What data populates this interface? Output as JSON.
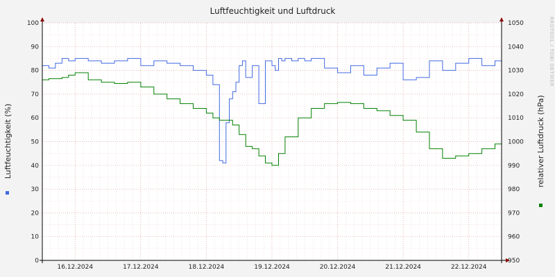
{
  "chart_data": {
    "type": "line",
    "title": "Luftfeuchtigkeit und Luftdruck",
    "watermark": "RRDTOOL / TOBI OETIKER",
    "x_tick_labels": [
      "16.12.2024",
      "17.12.2024",
      "18.12.2024",
      "19.12.2024",
      "20.12.2024",
      "21.12.2024",
      "22.12.2024"
    ],
    "x_range_days": [
      15.5,
      22.5
    ],
    "left_axis": {
      "label": "Luftfeuchtigkeit (%)",
      "min": 0,
      "max": 100,
      "ticks": [
        0,
        10,
        20,
        30,
        40,
        50,
        60,
        70,
        80,
        90,
        100
      ]
    },
    "right_axis": {
      "label": "relativer Luftdruck (hPa)",
      "min": 950,
      "max": 1050,
      "ticks": [
        950,
        960,
        970,
        980,
        990,
        1000,
        1010,
        1020,
        1030,
        1040,
        1050
      ]
    },
    "grid": true,
    "colors": {
      "humidity": "#4169e1",
      "pressure": "#008000",
      "grid": "#e0a0a0",
      "axis": "#000000",
      "plot_bg": "#ffffff",
      "page_bg": "#f3f3f3"
    },
    "series": [
      {
        "axis": "left",
        "x": [
          15.5,
          15.6,
          15.7,
          15.8,
          15.9,
          16.0,
          16.2,
          16.4,
          16.6,
          16.8,
          17.0,
          17.2,
          17.4,
          17.6,
          17.8,
          18.0,
          18.1,
          18.2,
          18.25,
          18.3,
          18.35,
          18.4,
          18.45,
          18.5,
          18.55,
          18.6,
          18.7,
          18.8,
          18.9,
          19.0,
          19.05,
          19.1,
          19.15,
          19.2,
          19.3,
          19.4,
          19.5,
          19.6,
          19.8,
          20.0,
          20.2,
          20.4,
          20.6,
          20.8,
          21.0,
          21.2,
          21.4,
          21.6,
          21.8,
          22.0,
          22.2,
          22.4,
          22.5
        ],
        "values": [
          82,
          81,
          83,
          85,
          84,
          85,
          84,
          83,
          84,
          85,
          82,
          84,
          83,
          82,
          80,
          78,
          74,
          42,
          41,
          58,
          68,
          71,
          75,
          82,
          84,
          77,
          82,
          66,
          84,
          82,
          80,
          85,
          84,
          85,
          84,
          85,
          84,
          85,
          81,
          79,
          82,
          78,
          81,
          83,
          76,
          77,
          84,
          80,
          83,
          85,
          82,
          84,
          85
        ]
      },
      {
        "axis": "right",
        "x": [
          15.5,
          15.6,
          15.7,
          15.8,
          15.9,
          16.0,
          16.2,
          16.4,
          16.6,
          16.8,
          17.0,
          17.2,
          17.4,
          17.6,
          17.8,
          18.0,
          18.1,
          18.2,
          18.3,
          18.4,
          18.5,
          18.6,
          18.7,
          18.8,
          18.9,
          19.0,
          19.1,
          19.2,
          19.4,
          19.6,
          19.8,
          20.0,
          20.2,
          20.4,
          20.6,
          20.8,
          21.0,
          21.2,
          21.4,
          21.6,
          21.8,
          22.0,
          22.2,
          22.4,
          22.5
        ],
        "values": [
          1026,
          1026.5,
          1026.5,
          1027,
          1028,
          1029,
          1026,
          1025,
          1024.5,
          1025,
          1023,
          1020,
          1018,
          1016,
          1014,
          1012,
          1010,
          1009,
          1009,
          1007,
          1003,
          998,
          997,
          994,
          991,
          990,
          995,
          1002,
          1010,
          1014,
          1016,
          1016.5,
          1016,
          1014,
          1013,
          1011,
          1009,
          1004,
          997,
          993,
          994,
          995,
          997,
          999,
          1001
        ]
      }
    ]
  }
}
